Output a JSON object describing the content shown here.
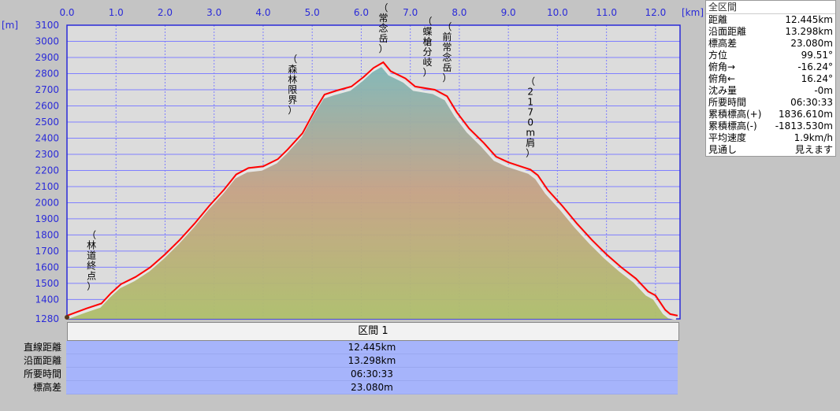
{
  "chart_data": {
    "type": "area",
    "x_unit": "[km]",
    "y_unit": "[m]",
    "xlim": [
      0,
      12.5
    ],
    "ylim": [
      1280,
      3100
    ],
    "x_ticks": [
      "0.0",
      "1.0",
      "2.0",
      "3.0",
      "4.0",
      "5.0",
      "6.0",
      "7.0",
      "8.0",
      "9.0",
      "10.0",
      "11.0",
      "12.0"
    ],
    "y_ticks": [
      "1280",
      "1400",
      "1500",
      "1600",
      "1700",
      "1800",
      "1900",
      "2000",
      "2100",
      "2200",
      "2300",
      "2400",
      "2500",
      "2600",
      "2700",
      "2800",
      "2900",
      "3000",
      "3100"
    ],
    "grid": true,
    "profile": [
      [
        0.0,
        1300
      ],
      [
        0.4,
        1345
      ],
      [
        0.7,
        1375
      ],
      [
        0.9,
        1440
      ],
      [
        1.1,
        1495
      ],
      [
        1.4,
        1540
      ],
      [
        1.7,
        1600
      ],
      [
        2.0,
        1680
      ],
      [
        2.3,
        1770
      ],
      [
        2.6,
        1870
      ],
      [
        2.9,
        1980
      ],
      [
        3.2,
        2080
      ],
      [
        3.45,
        2175
      ],
      [
        3.7,
        2215
      ],
      [
        4.0,
        2225
      ],
      [
        4.3,
        2270
      ],
      [
        4.5,
        2330
      ],
      [
        4.8,
        2430
      ],
      [
        5.05,
        2570
      ],
      [
        5.25,
        2670
      ],
      [
        5.5,
        2695
      ],
      [
        5.8,
        2720
      ],
      [
        6.05,
        2780
      ],
      [
        6.25,
        2835
      ],
      [
        6.45,
        2870
      ],
      [
        6.6,
        2815
      ],
      [
        6.9,
        2770
      ],
      [
        7.1,
        2720
      ],
      [
        7.5,
        2700
      ],
      [
        7.75,
        2660
      ],
      [
        7.95,
        2560
      ],
      [
        8.2,
        2460
      ],
      [
        8.5,
        2370
      ],
      [
        8.75,
        2285
      ],
      [
        9.0,
        2250
      ],
      [
        9.25,
        2225
      ],
      [
        9.45,
        2205
      ],
      [
        9.6,
        2170
      ],
      [
        9.8,
        2080
      ],
      [
        10.1,
        1980
      ],
      [
        10.4,
        1870
      ],
      [
        10.7,
        1770
      ],
      [
        11.0,
        1680
      ],
      [
        11.3,
        1600
      ],
      [
        11.6,
        1530
      ],
      [
        11.85,
        1450
      ],
      [
        12.0,
        1425
      ],
      [
        12.2,
        1335
      ],
      [
        12.3,
        1310
      ],
      [
        12.45,
        1300
      ]
    ],
    "annotations": [
      {
        "text": "（林道終点）",
        "x": 0.5,
        "y": 1400
      },
      {
        "text": "（森林限界）",
        "x": 4.6,
        "y": 2490
      },
      {
        "text": "（常念岳）",
        "x": 6.45,
        "y": 2870
      },
      {
        "text": "（蝶槍分岐）",
        "x": 7.35,
        "y": 2725
      },
      {
        "text": "（前常念岳）",
        "x": 7.75,
        "y": 2690
      },
      {
        "text": "（2170m肩）",
        "x": 9.45,
        "y": 2225
      }
    ],
    "colors": {
      "profile_line": "#ff0000",
      "plot_bg": "#dcdcdc",
      "grid": "#7f7fff",
      "axis_frame": "#2a2ad8",
      "axis_text": "#2a2ad8"
    }
  },
  "stats_panel": {
    "title": "全区間",
    "rows": [
      {
        "label": "距離",
        "value": "12.445km"
      },
      {
        "label": "沿面距離",
        "value": "13.298km"
      },
      {
        "label": "標高差",
        "value": "23.080m"
      },
      {
        "label": "方位",
        "value": "99.51°"
      },
      {
        "label": "俯角→",
        "value": "-16.24°"
      },
      {
        "label": "俯角←",
        "value": "16.24°"
      },
      {
        "label": "沈み量",
        "value": "-0m"
      },
      {
        "label": "所要時間",
        "value": "06:30:33"
      },
      {
        "label": "累積標高(+)",
        "value": "1836.610m"
      },
      {
        "label": "累積標高(-)",
        "value": "-1813.530m"
      },
      {
        "label": "平均速度",
        "value": "1.9km/h"
      },
      {
        "label": "見通し",
        "value": "見えます"
      }
    ]
  },
  "section_table": {
    "header": "区間 1",
    "rows": [
      {
        "label": "直線距離",
        "value": "12.445km"
      },
      {
        "label": "沿面距離",
        "value": "13.298km"
      },
      {
        "label": "所要時間",
        "value": "06:30:33"
      },
      {
        "label": "標高差",
        "value": "23.080m"
      }
    ]
  }
}
